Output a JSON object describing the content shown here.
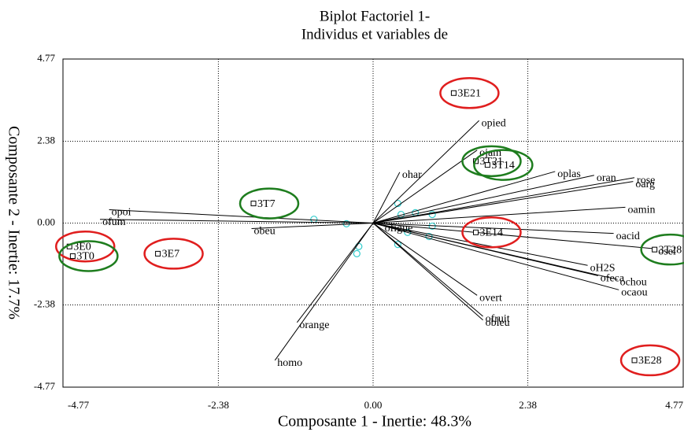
{
  "chart_data": {
    "type": "biplot",
    "title": [
      "Biplot Factoriel 1-",
      "Individus et variables de"
    ],
    "xlabel": "Composante 1 - Inertie: 48.3%",
    "ylabel": "Composante 2 - Inertie: 17.7%",
    "xlim": [
      -4.77,
      4.77
    ],
    "ylim": [
      -4.77,
      4.77
    ],
    "xticks": [
      -4.77,
      -2.38,
      {
        "value": 0,
        "label": "0.00"
      },
      2.38,
      4.77
    ],
    "yticks": [
      -4.77,
      -2.38,
      {
        "value": 0,
        "label": "0.00"
      },
      2.38,
      4.77
    ],
    "grid": true,
    "individuals": {
      "names": [
        "3E21",
        "3T21",
        "3T14",
        "3E14",
        "3T7",
        "3E0",
        "3T0",
        "3E7",
        "3T28",
        "3E28"
      ],
      "x": [
        1.24,
        1.58,
        1.76,
        1.58,
        -1.84,
        -4.67,
        -4.62,
        -3.31,
        4.33,
        4.02
      ],
      "y": [
        3.78,
        1.8,
        1.69,
        -0.27,
        0.57,
        -0.68,
        -0.96,
        -0.89,
        -0.77,
        -3.99
      ],
      "rings": [
        "#e01e1e",
        "#1e7d1e",
        "#1e7d1e",
        "#e01e1e",
        "#1e7d1e",
        "#e01e1e",
        "#1e7d1e",
        "#e01e1e",
        "#1e7d1e",
        "#e01e1e"
      ]
    },
    "variables": {
      "names": [
        "opied",
        "ojam",
        "ohar",
        "oplas",
        "oran",
        "rose",
        "oarg",
        "oamin",
        "oacid",
        "osel",
        "oH2S",
        "ofeca",
        "ochou",
        "ocaou",
        "overt",
        "ofruit",
        "obleu",
        "orange",
        "homo",
        "opoi",
        "ofum",
        "obeu",
        "ofigue"
      ],
      "x": [
        1.63,
        1.6,
        0.41,
        2.8,
        3.4,
        4.02,
        4.0,
        3.88,
        3.7,
        4.35,
        3.3,
        3.46,
        3.76,
        3.78,
        1.6,
        1.69,
        1.69,
        -1.17,
        -1.51,
        -4.06,
        -4.2,
        -1.87,
        0.14
      ],
      "y": [
        2.98,
        2.12,
        1.48,
        1.5,
        1.39,
        1.32,
        1.21,
        0.46,
        -0.3,
        -0.75,
        -1.23,
        -1.53,
        -1.64,
        -1.94,
        -2.1,
        -2.71,
        -2.82,
        -2.89,
        -3.99,
        0.39,
        0.11,
        -0.16,
        -0.07
      ]
    },
    "supplementary": {
      "color": "#33cccc",
      "x": [
        -0.91,
        -0.41,
        -0.22,
        -0.25,
        0.38,
        0.43,
        0.38,
        0.65,
        0.91,
        0.86,
        0.91,
        0.53
      ],
      "y": [
        0.11,
        -0.02,
        -0.68,
        -0.89,
        0.57,
        0.25,
        -0.62,
        0.3,
        0.25,
        -0.39,
        -0.09,
        -0.27
      ]
    }
  }
}
